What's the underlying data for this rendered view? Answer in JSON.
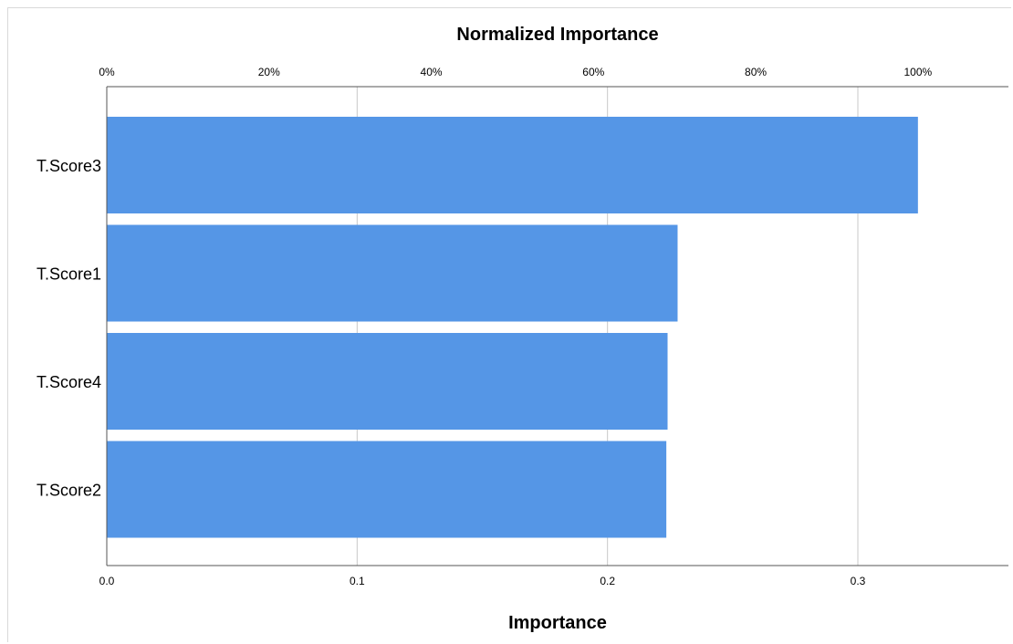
{
  "chart_data": {
    "type": "bar",
    "orientation": "horizontal",
    "categories": [
      "T.Score3",
      "T.Score1",
      "T.Score4",
      "T.Score2"
    ],
    "values": [
      0.324,
      0.228,
      0.224,
      0.2235
    ],
    "bar_color": "#5596E6",
    "top_axis": {
      "title": "Normalized Importance",
      "ticks": [
        "0%",
        "20%",
        "40%",
        "60%",
        "80%",
        "100%"
      ],
      "tick_values": [
        0,
        0.2,
        0.4,
        0.6,
        0.8,
        1.0
      ]
    },
    "bottom_axis": {
      "title": "Importance",
      "ticks": [
        "0.0",
        "0.1",
        "0.2",
        "0.3"
      ],
      "tick_values": [
        0,
        0.1,
        0.2,
        0.3
      ]
    },
    "xlim": [
      0,
      0.36
    ],
    "grid": true
  }
}
